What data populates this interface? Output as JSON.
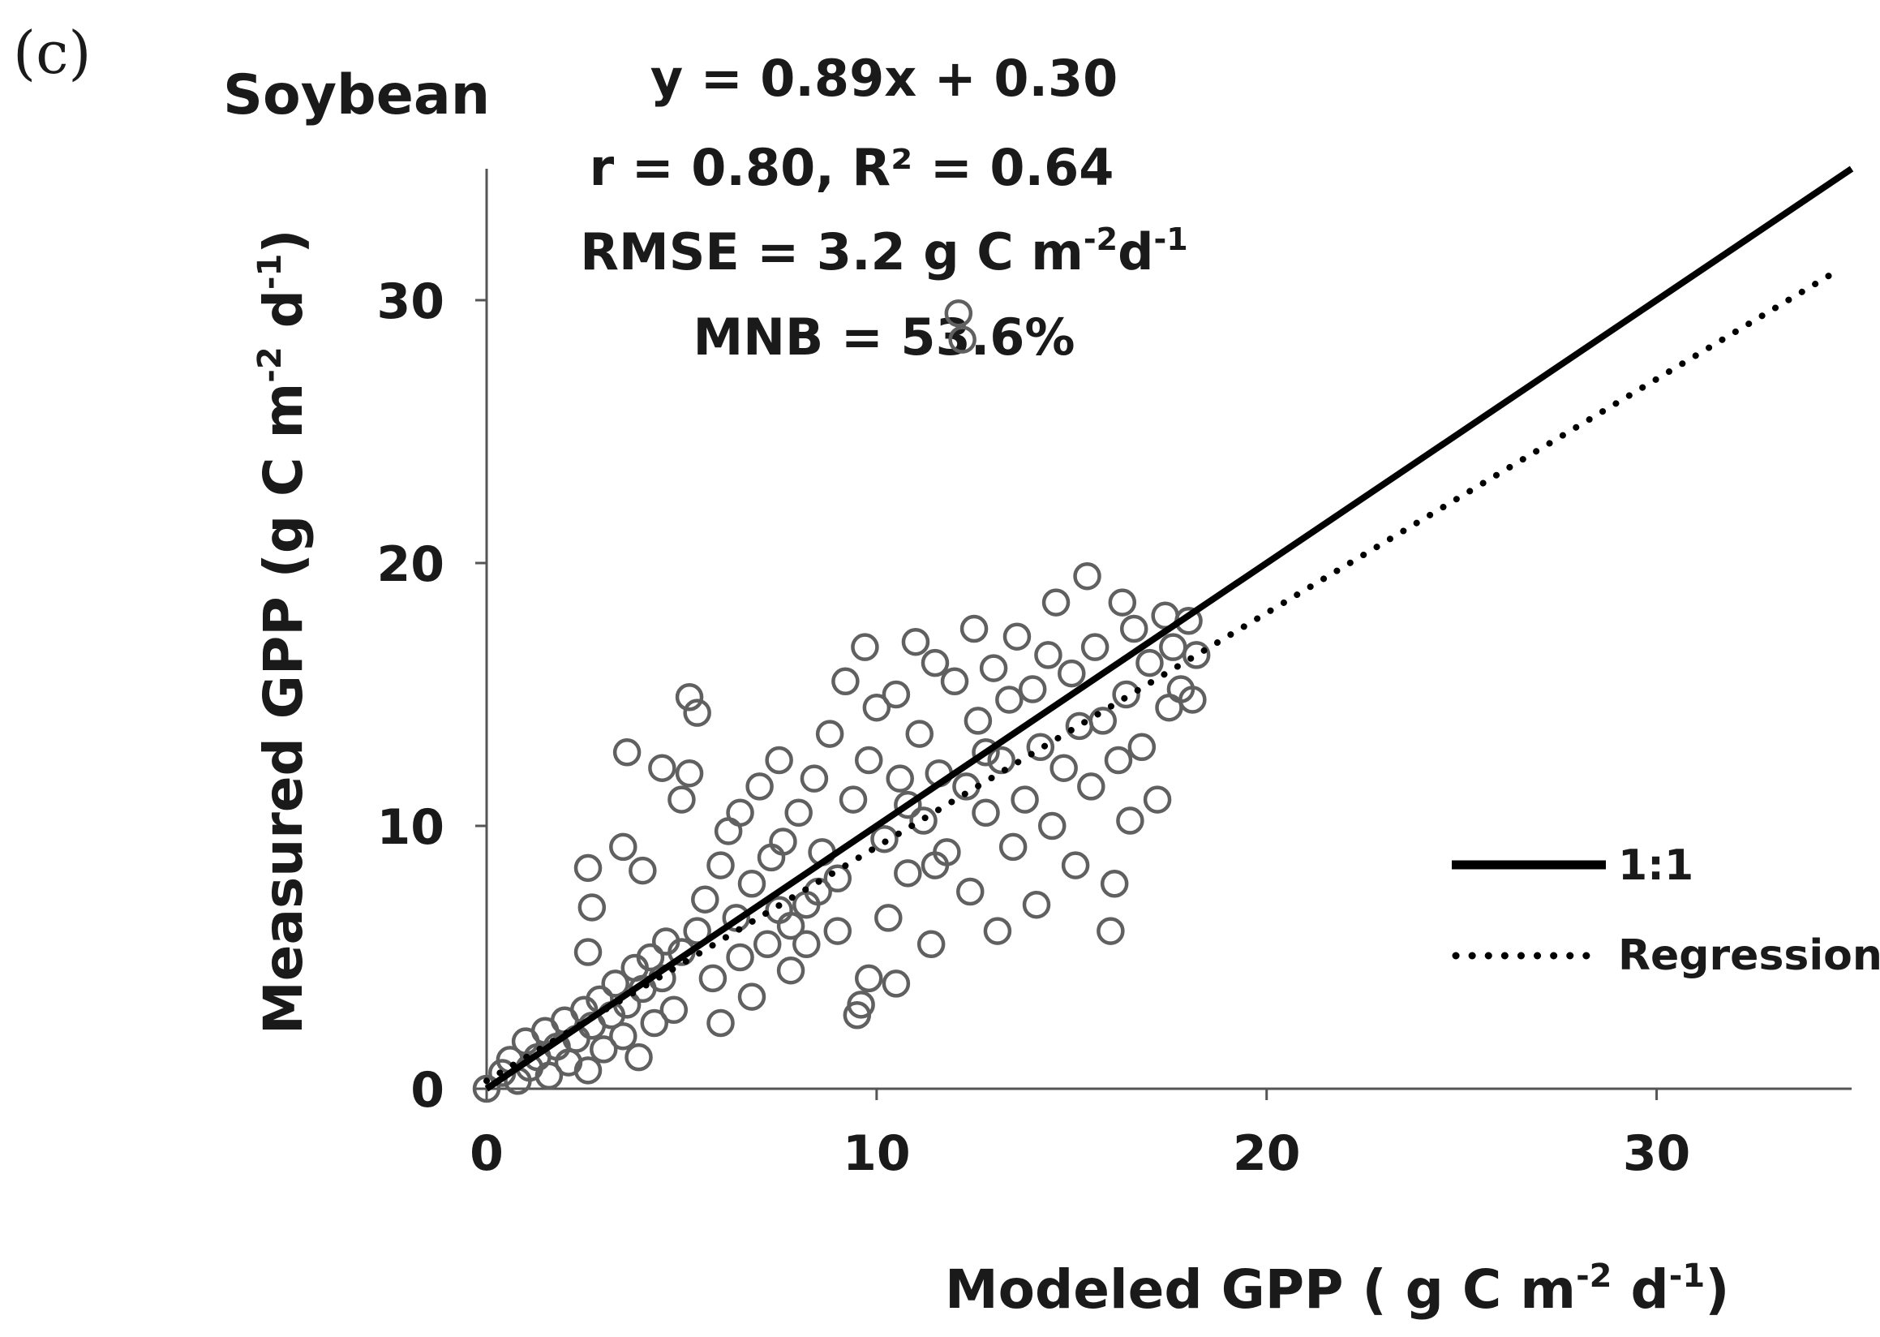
{
  "panel_label": "(c)",
  "chart_data": {
    "type": "scatter",
    "title": "Soybean",
    "xlabel": "Modeled GPP ( g C m",
    "xlabel_sup1": "-2",
    "xlabel_mid": " d",
    "xlabel_sup2": "-1",
    "xlabel_end": ")",
    "ylabel": "Measured GPP (g C m",
    "ylabel_sup1": "-2",
    "ylabel_mid": " d",
    "ylabel_sup2": "-1",
    "ylabel_end": ")",
    "xlim": [
      0,
      35
    ],
    "ylim": [
      0,
      35
    ],
    "xticks": [
      "0",
      "10",
      "20",
      "30"
    ],
    "yticks": [
      "0",
      "10",
      "20",
      "30"
    ],
    "grid": false,
    "stats": {
      "equation": "y = 0.89x + 0.30",
      "corr": "r = 0.80, R² = 0.64",
      "rmse_prefix": "RMSE = 3.2 g C m",
      "rmse_sup1": "-2",
      "rmse_mid": "d",
      "rmse_sup2": "-1",
      "mnb": "MNB = 53.6%"
    },
    "lines": [
      {
        "name": "1:1",
        "x": [
          0,
          35
        ],
        "y": [
          0,
          35
        ],
        "style": "solid"
      },
      {
        "name": "Regression",
        "x": [
          0,
          34.7
        ],
        "y": [
          0.3,
          31.18
        ],
        "style": "dotted"
      }
    ],
    "legend": {
      "position": "right",
      "entries": [
        "1:1",
        "Regression"
      ]
    },
    "series": [
      {
        "name": "observations",
        "marker": "open-circle",
        "color": "#606060",
        "points": [
          [
            0,
            0
          ],
          [
            0.4,
            0.6
          ],
          [
            0.6,
            1.1
          ],
          [
            0.8,
            0.3
          ],
          [
            1.0,
            1.8
          ],
          [
            1.1,
            0.8
          ],
          [
            1.3,
            1.2
          ],
          [
            1.5,
            2.2
          ],
          [
            1.6,
            0.5
          ],
          [
            1.8,
            1.6
          ],
          [
            2.0,
            2.6
          ],
          [
            2.1,
            1.0
          ],
          [
            2.3,
            1.9
          ],
          [
            2.5,
            3.0
          ],
          [
            2.6,
            0.7
          ],
          [
            2.7,
            2.4
          ],
          [
            2.9,
            3.4
          ],
          [
            3.0,
            1.5
          ],
          [
            3.2,
            2.8
          ],
          [
            3.3,
            4.0
          ],
          [
            3.5,
            2.0
          ],
          [
            3.6,
            3.2
          ],
          [
            3.8,
            4.6
          ],
          [
            3.9,
            1.2
          ],
          [
            4.0,
            3.8
          ],
          [
            4.2,
            5.0
          ],
          [
            4.3,
            2.5
          ],
          [
            4.5,
            4.2
          ],
          [
            4.6,
            5.6
          ],
          [
            4.8,
            3.0
          ],
          [
            2.6,
            8.4
          ],
          [
            2.7,
            6.9
          ],
          [
            2.6,
            5.2
          ],
          [
            3.6,
            12.8
          ],
          [
            3.5,
            9.2
          ],
          [
            4.0,
            8.3
          ],
          [
            4.5,
            12.2
          ],
          [
            5.2,
            14.9
          ],
          [
            5.4,
            14.3
          ],
          [
            5.0,
            11.0
          ],
          [
            5.2,
            12.0
          ],
          [
            5.0,
            5.2
          ],
          [
            5.4,
            6.0
          ],
          [
            5.6,
            7.2
          ],
          [
            5.8,
            4.2
          ],
          [
            6.0,
            8.5
          ],
          [
            6.2,
            9.8
          ],
          [
            6.4,
            6.5
          ],
          [
            6.5,
            10.5
          ],
          [
            6.8,
            7.8
          ],
          [
            7.0,
            11.5
          ],
          [
            7.2,
            5.5
          ],
          [
            7.3,
            8.8
          ],
          [
            7.5,
            12.5
          ],
          [
            7.6,
            9.4
          ],
          [
            7.8,
            6.2
          ],
          [
            8.0,
            10.5
          ],
          [
            8.2,
            7.0
          ],
          [
            8.4,
            11.8
          ],
          [
            8.6,
            9.0
          ],
          [
            8.8,
            13.5
          ],
          [
            9.0,
            8.0
          ],
          [
            9.2,
            15.5
          ],
          [
            9.4,
            11.0
          ],
          [
            9.5,
            2.8
          ],
          [
            9.6,
            3.2
          ],
          [
            9.7,
            16.8
          ],
          [
            9.8,
            12.5
          ],
          [
            10.0,
            14.5
          ],
          [
            10.2,
            9.5
          ],
          [
            10.3,
            6.5
          ],
          [
            10.5,
            15.0
          ],
          [
            10.6,
            11.8
          ],
          [
            10.8,
            8.2
          ],
          [
            11.0,
            17.0
          ],
          [
            11.1,
            13.5
          ],
          [
            11.2,
            10.2
          ],
          [
            11.4,
            5.5
          ],
          [
            11.5,
            16.2
          ],
          [
            11.6,
            12.0
          ],
          [
            11.8,
            9.0
          ],
          [
            12.0,
            15.5
          ],
          [
            12.1,
            29.5
          ],
          [
            12.2,
            28.5
          ],
          [
            12.3,
            11.5
          ],
          [
            12.4,
            7.5
          ],
          [
            12.5,
            17.5
          ],
          [
            12.6,
            14.0
          ],
          [
            12.8,
            10.5
          ],
          [
            13.0,
            16.0
          ],
          [
            13.1,
            6.0
          ],
          [
            13.2,
            12.5
          ],
          [
            13.4,
            14.8
          ],
          [
            13.5,
            9.2
          ],
          [
            13.6,
            17.2
          ],
          [
            13.8,
            11.0
          ],
          [
            14.0,
            15.2
          ],
          [
            14.1,
            7.0
          ],
          [
            14.2,
            13.0
          ],
          [
            14.4,
            16.5
          ],
          [
            14.5,
            10.0
          ],
          [
            14.6,
            18.5
          ],
          [
            14.8,
            12.2
          ],
          [
            15.0,
            15.8
          ],
          [
            15.1,
            8.5
          ],
          [
            15.2,
            13.8
          ],
          [
            15.4,
            19.5
          ],
          [
            15.5,
            11.5
          ],
          [
            15.6,
            16.8
          ],
          [
            15.8,
            14.0
          ],
          [
            16.0,
            6.0
          ],
          [
            16.1,
            7.8
          ],
          [
            16.2,
            12.5
          ],
          [
            16.3,
            18.5
          ],
          [
            16.4,
            15.0
          ],
          [
            16.5,
            10.2
          ],
          [
            16.6,
            17.5
          ],
          [
            16.8,
            13.0
          ],
          [
            17.0,
            16.2
          ],
          [
            17.2,
            11.0
          ],
          [
            17.4,
            18.0
          ],
          [
            17.5,
            14.5
          ],
          [
            17.6,
            16.8
          ],
          [
            17.8,
            15.2
          ],
          [
            18.0,
            17.8
          ],
          [
            18.1,
            14.8
          ],
          [
            18.2,
            16.5
          ],
          [
            11.5,
            8.5
          ],
          [
            10.8,
            10.8
          ],
          [
            12.8,
            12.8
          ],
          [
            9.0,
            6.0
          ],
          [
            8.5,
            7.5
          ],
          [
            7.8,
            4.5
          ],
          [
            6.8,
            3.5
          ],
          [
            6.0,
            2.5
          ],
          [
            6.5,
            5.0
          ],
          [
            7.5,
            6.8
          ],
          [
            8.2,
            5.5
          ],
          [
            9.8,
            4.2
          ],
          [
            10.5,
            4.0
          ]
        ]
      }
    ]
  },
  "legend_labels": {
    "one_to_one": "1:1",
    "regression": "Regression"
  }
}
